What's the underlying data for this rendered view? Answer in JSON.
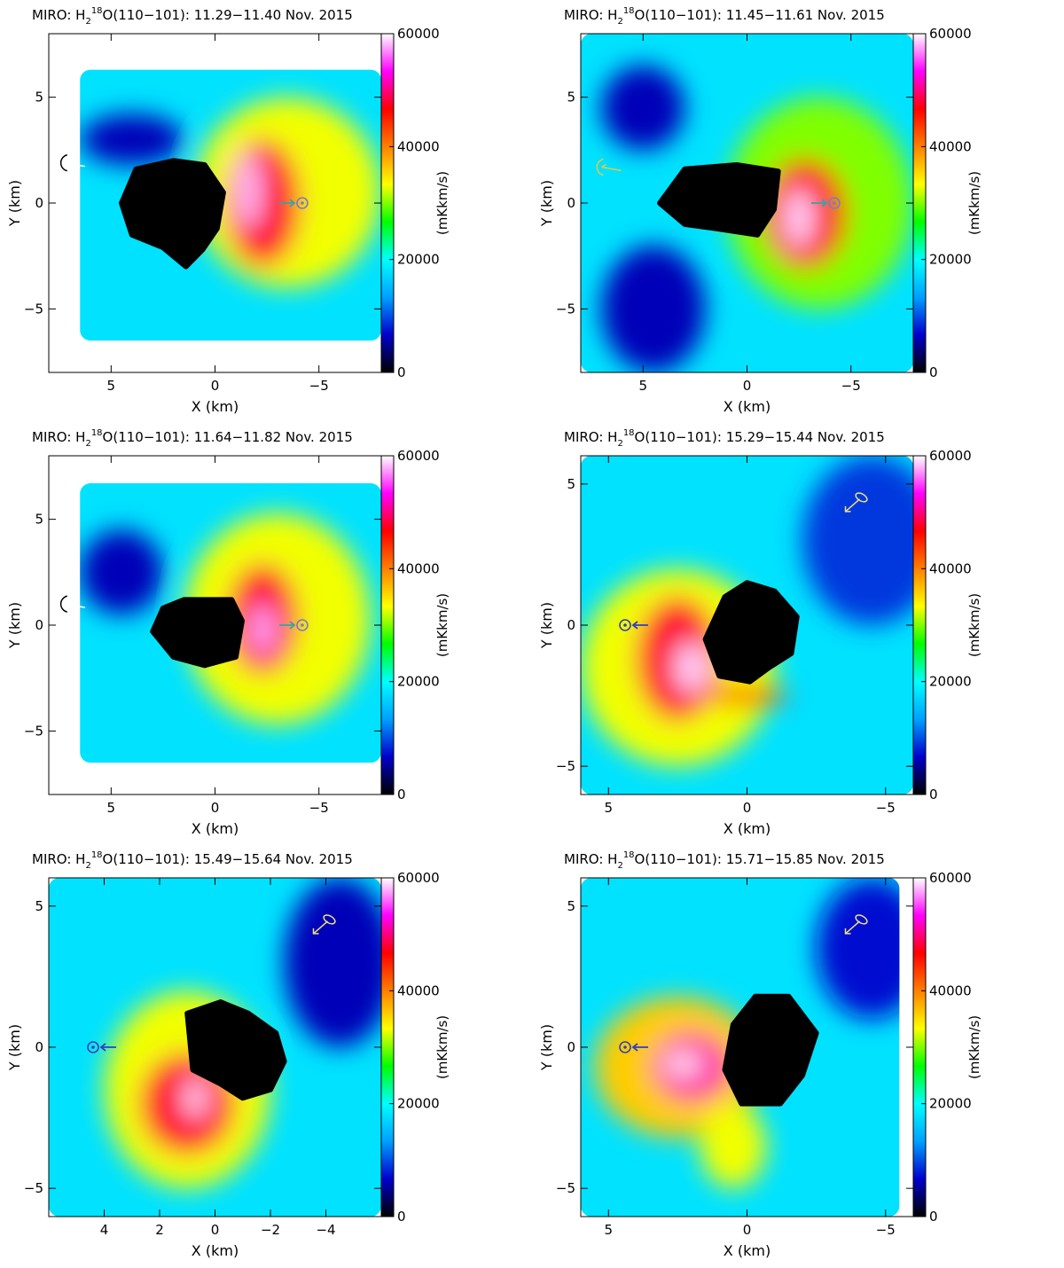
{
  "colorbar": {
    "ticks": [
      "0",
      "20000",
      "40000",
      "60000"
    ],
    "label": "(mKkm/s)",
    "range": [
      0,
      60000
    ],
    "colors": [
      "#000000",
      "#0000cc",
      "#00a0ff",
      "#00ffff",
      "#00ff00",
      "#ffff00",
      "#ff8000",
      "#ff0000",
      "#ff00ff",
      "#ffffff"
    ]
  },
  "chart_data": [
    {
      "type": "heatmap",
      "title": {
        "prefix": "MIRO: H",
        "sub": "2",
        "sup": "18",
        "suffix": "O(110−101): 11.29−11.40 Nov. 2015"
      },
      "xlabel": "X (km)",
      "ylabel": "Y (km)",
      "xlim": [
        8,
        -8
      ],
      "ylim": [
        -8,
        8
      ],
      "xticks": [
        5,
        0,
        -5
      ],
      "yticks": [
        -5,
        0,
        5
      ],
      "xtick_labels": [
        "5",
        "0",
        "−5"
      ],
      "ytick_labels": [
        "−5",
        "0",
        "5"
      ],
      "coverage": [
        6.5,
        -8,
        -6.5,
        6.3
      ],
      "nucleus": [
        [
          2.0,
          2.0
        ],
        [
          0.5,
          1.8
        ],
        [
          -0.4,
          0.5
        ],
        [
          -0.1,
          -1.2
        ],
        [
          0.6,
          -2.2
        ],
        [
          1.4,
          -3.0
        ],
        [
          2.5,
          -2.1
        ],
        [
          4.0,
          -1.5
        ],
        [
          4.5,
          0.0
        ],
        [
          3.8,
          1.6
        ]
      ],
      "blobs": [
        {
          "x": -3.5,
          "y": 0.5,
          "rx": 4.5,
          "ry": 4.5,
          "level": 0.55
        },
        {
          "x": -2.3,
          "y": 0.0,
          "rx": 1.8,
          "ry": 3.0,
          "level": 0.8
        },
        {
          "x": -1.6,
          "y": 0.6,
          "rx": 0.6,
          "ry": 1.8,
          "level": 0.97
        },
        {
          "x": 4.0,
          "y": 3.0,
          "rx": 2.5,
          "ry": 1.2,
          "level": 0.1
        }
      ],
      "sun_marker": {
        "x": -4.2,
        "y": 0.0,
        "arrow": "in-from-left"
      },
      "rotation_marker": {
        "x": 7.2,
        "y": 1.9,
        "arrow": "to-right"
      }
    },
    {
      "type": "heatmap",
      "title": {
        "prefix": "MIRO: H",
        "sub": "2",
        "sup": "18",
        "suffix": "O(110−101): 11.45−11.61 Nov. 2015"
      },
      "xlabel": "X (km)",
      "ylabel": "Y (km)",
      "xlim": [
        8,
        -8
      ],
      "ylim": [
        -8,
        8
      ],
      "xticks": [
        5,
        0,
        -5
      ],
      "yticks": [
        -5,
        0,
        5
      ],
      "xtick_labels": [
        "5",
        "0",
        "−5"
      ],
      "ytick_labels": [
        "−5",
        "0",
        "5"
      ],
      "coverage": [
        8,
        -8,
        -8,
        8
      ],
      "nucleus": [
        [
          3.0,
          1.6
        ],
        [
          0.5,
          1.8
        ],
        [
          -1.5,
          1.5
        ],
        [
          -1.3,
          -0.3
        ],
        [
          -0.5,
          -1.5
        ],
        [
          1.5,
          -1.2
        ],
        [
          3.0,
          -1.0
        ],
        [
          4.2,
          0.0
        ]
      ],
      "blobs": [
        {
          "x": -3.5,
          "y": 0.0,
          "rx": 4.5,
          "ry": 5.0,
          "level": 0.5
        },
        {
          "x": -2.8,
          "y": -0.5,
          "rx": 2.0,
          "ry": 2.6,
          "level": 0.78
        },
        {
          "x": -2.5,
          "y": -0.7,
          "rx": 0.7,
          "ry": 1.4,
          "level": 0.98
        },
        {
          "x": 4.5,
          "y": -5.0,
          "rx": 2.5,
          "ry": 3.0,
          "level": 0.1
        },
        {
          "x": 5.0,
          "y": 4.5,
          "rx": 2.0,
          "ry": 2.0,
          "level": 0.1
        }
      ],
      "sun_marker": {
        "x": -4.2,
        "y": 0.0,
        "arrow": "in-from-left"
      },
      "rotation_marker": {
        "x": 7.0,
        "y": 1.7,
        "arrow": "to-right"
      }
    },
    {
      "type": "heatmap",
      "title": {
        "prefix": "MIRO: H",
        "sub": "2",
        "sup": "18",
        "suffix": "O(110−101): 11.64−11.82 Nov. 2015"
      },
      "xlabel": "X (km)",
      "ylabel": "Y (km)",
      "xlim": [
        8,
        -8
      ],
      "ylim": [
        -8,
        8
      ],
      "xticks": [
        5,
        0,
        -5
      ],
      "yticks": [
        -5,
        0,
        5
      ],
      "xtick_labels": [
        "5",
        "0",
        "−5"
      ],
      "ytick_labels": [
        "−5",
        "0",
        "5"
      ],
      "coverage": [
        6.5,
        -8,
        -6.5,
        6.7
      ],
      "nucleus": [
        [
          1.5,
          1.2
        ],
        [
          -0.8,
          1.2
        ],
        [
          -1.3,
          0.2
        ],
        [
          -1.0,
          -1.5
        ],
        [
          0.5,
          -1.9
        ],
        [
          2.0,
          -1.5
        ],
        [
          3.0,
          -0.3
        ],
        [
          2.5,
          0.8
        ]
      ],
      "blobs": [
        {
          "x": -3.0,
          "y": 0.3,
          "rx": 4.5,
          "ry": 5.0,
          "level": 0.55
        },
        {
          "x": -2.3,
          "y": 0.3,
          "rx": 1.7,
          "ry": 2.6,
          "level": 0.8
        },
        {
          "x": -2.3,
          "y": -0.2,
          "rx": 0.6,
          "ry": 1.2,
          "level": 0.96
        },
        {
          "x": 4.5,
          "y": 2.5,
          "rx": 2.0,
          "ry": 2.0,
          "level": 0.1
        }
      ],
      "sun_marker": {
        "x": -4.2,
        "y": 0.0,
        "arrow": "in-from-left"
      },
      "rotation_marker": {
        "x": 7.2,
        "y": 1.0,
        "arrow": "to-right"
      }
    },
    {
      "type": "heatmap",
      "title": {
        "prefix": "MIRO: H",
        "sub": "2",
        "sup": "18",
        "suffix": "O(110−101): 15.29−15.44 Nov. 2015"
      },
      "xlabel": "X (km)",
      "ylabel": "Y (km)",
      "xlim": [
        6,
        -6
      ],
      "ylim": [
        -6,
        6
      ],
      "xticks": [
        5,
        0,
        -5
      ],
      "yticks": [
        -5,
        0,
        5
      ],
      "xtick_labels": [
        "5",
        "0",
        "−5"
      ],
      "ytick_labels": [
        "−5",
        "0",
        "5"
      ],
      "coverage": [
        6,
        -6,
        -6,
        6
      ],
      "nucleus": [
        [
          0.8,
          1.0
        ],
        [
          0.0,
          1.5
        ],
        [
          -1.0,
          1.2
        ],
        [
          -1.8,
          0.3
        ],
        [
          -1.6,
          -1.0
        ],
        [
          -0.8,
          -1.5
        ],
        [
          -0.1,
          -2.0
        ],
        [
          1.0,
          -1.8
        ],
        [
          1.5,
          -0.5
        ]
      ],
      "blobs": [
        {
          "x": 2.5,
          "y": -1.5,
          "rx": 3.5,
          "ry": 3.5,
          "level": 0.55
        },
        {
          "x": 2.5,
          "y": -1.2,
          "rx": 1.5,
          "ry": 2.2,
          "level": 0.8
        },
        {
          "x": 2.0,
          "y": -1.5,
          "rx": 0.6,
          "ry": 0.9,
          "level": 0.98
        },
        {
          "x": 0.0,
          "y": -2.5,
          "rx": 1.5,
          "ry": 0.3,
          "level": 0.75
        },
        {
          "x": -4.5,
          "y": 3.0,
          "rx": 2.5,
          "ry": 3.0,
          "level": 0.15
        }
      ],
      "sun_marker": {
        "x": 4.4,
        "y": 0.0,
        "arrow": "in-from-right"
      },
      "rotation_marker": {
        "x": -4.0,
        "y": 4.4,
        "arrow": "to-bottom-left"
      }
    },
    {
      "type": "heatmap",
      "title": {
        "prefix": "MIRO: H",
        "sub": "2",
        "sup": "18",
        "suffix": "O(110−101): 15.49−15.64 Nov. 2015"
      },
      "xlabel": "X (km)",
      "ylabel": "Y (km)",
      "xlim": [
        6,
        -6
      ],
      "ylim": [
        -6,
        6
      ],
      "xticks": [
        4,
        2,
        0,
        -2,
        -4
      ],
      "yticks": [
        -5,
        0,
        5
      ],
      "xtick_labels": [
        "4",
        "2",
        "0",
        "−2",
        "−4"
      ],
      "ytick_labels": [
        "−5",
        "0",
        "5"
      ],
      "coverage": [
        6,
        -6,
        -6,
        6
      ],
      "nucleus": [
        [
          1.0,
          1.2
        ],
        [
          -0.2,
          1.6
        ],
        [
          -1.2,
          1.2
        ],
        [
          -2.2,
          0.5
        ],
        [
          -2.5,
          -0.5
        ],
        [
          -2.0,
          -1.5
        ],
        [
          -1.0,
          -1.8
        ],
        [
          -0.2,
          -1.3
        ],
        [
          0.8,
          -0.8
        ]
      ],
      "blobs": [
        {
          "x": 1.0,
          "y": -1.5,
          "rx": 3.0,
          "ry": 3.5,
          "level": 0.55
        },
        {
          "x": 1.0,
          "y": -2.0,
          "rx": 1.7,
          "ry": 1.8,
          "level": 0.8
        },
        {
          "x": 0.7,
          "y": -1.8,
          "rx": 0.4,
          "ry": 0.7,
          "level": 0.98
        },
        {
          "x": -4.5,
          "y": 3.0,
          "rx": 2.0,
          "ry": 3.0,
          "level": 0.1
        }
      ],
      "sun_marker": {
        "x": 4.4,
        "y": 0.0,
        "arrow": "in-from-right"
      },
      "rotation_marker": {
        "x": -4.0,
        "y": 4.4,
        "arrow": "to-bottom-left"
      }
    },
    {
      "type": "heatmap",
      "title": {
        "prefix": "MIRO: H",
        "sub": "2",
        "sup": "18",
        "suffix": "O(110−101): 15.71−15.85 Nov. 2015"
      },
      "xlabel": "X (km)",
      "ylabel": "Y (km)",
      "xlim": [
        6,
        -6
      ],
      "ylim": [
        -6,
        6
      ],
      "xticks": [
        5,
        0,
        -5
      ],
      "yticks": [
        -5,
        0,
        5
      ],
      "xtick_labels": [
        "5",
        "0",
        "−5"
      ],
      "ytick_labels": [
        "−5",
        "0",
        "5"
      ],
      "coverage": [
        6,
        -5.5,
        -6,
        6
      ],
      "nucleus": [
        [
          -0.3,
          1.8
        ],
        [
          -1.5,
          1.8
        ],
        [
          -2.5,
          0.5
        ],
        [
          -2.0,
          -1.0
        ],
        [
          -1.2,
          -2.0
        ],
        [
          0.2,
          -2.0
        ],
        [
          0.8,
          -0.8
        ],
        [
          0.5,
          0.8
        ]
      ],
      "blobs": [
        {
          "x": 2.5,
          "y": -0.7,
          "rx": 3.0,
          "ry": 2.5,
          "level": 0.6
        },
        {
          "x": 2.0,
          "y": -0.7,
          "rx": 1.4,
          "ry": 1.2,
          "level": 0.85
        },
        {
          "x": 2.3,
          "y": -0.6,
          "rx": 0.7,
          "ry": 0.4,
          "level": 0.99
        },
        {
          "x": 0.5,
          "y": -3.5,
          "rx": 1.2,
          "ry": 1.5,
          "level": 0.55
        },
        {
          "x": -4.5,
          "y": 3.5,
          "rx": 2.0,
          "ry": 2.5,
          "level": 0.12
        }
      ],
      "sun_marker": {
        "x": 4.4,
        "y": 0.0,
        "arrow": "in-from-right"
      },
      "rotation_marker": {
        "x": -4.0,
        "y": 4.4,
        "arrow": "to-bottom-left"
      }
    }
  ]
}
